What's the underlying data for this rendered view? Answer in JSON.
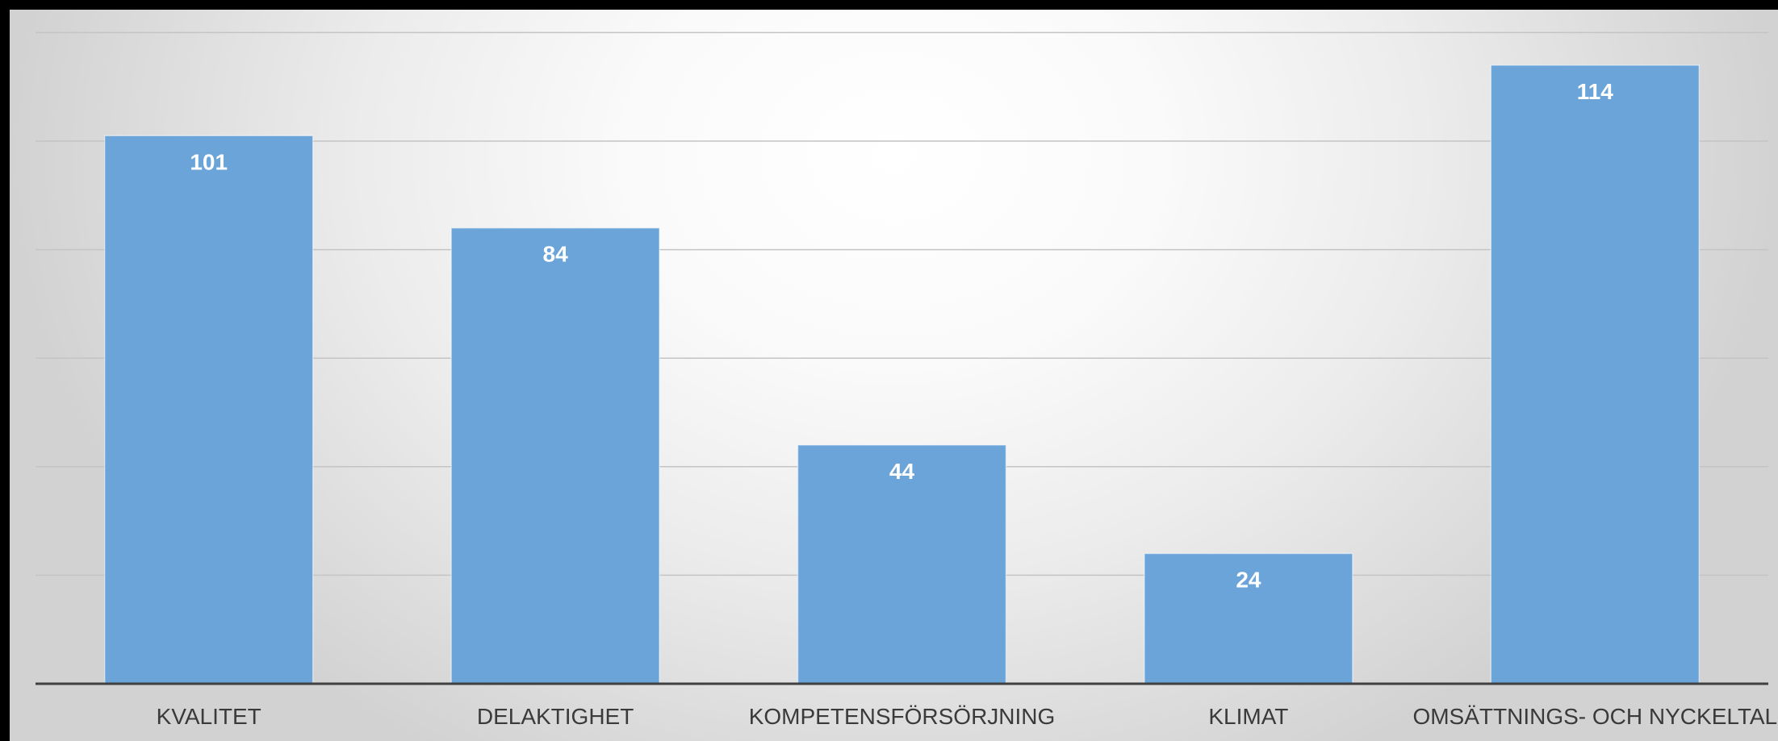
{
  "chart_data": {
    "type": "bar",
    "title": "",
    "xlabel": "",
    "ylabel": "",
    "categories": [
      "KVALITET",
      "DELAKTIGHET",
      "KOMPETENSFÖRSÖRJNING",
      "KLIMAT",
      "OMSÄTTNINGS- OCH NYCKELTAL"
    ],
    "values": [
      101,
      84,
      44,
      24,
      114
    ],
    "data_labels": [
      "101",
      "84",
      "44",
      "24",
      "114"
    ],
    "ylim": [
      0,
      120
    ],
    "y_gridline_step": 20,
    "grid": true,
    "legend": "none",
    "bar_color": "#6aa4d8",
    "data_label_color": "#ffffff",
    "axis_color": "#404040"
  }
}
